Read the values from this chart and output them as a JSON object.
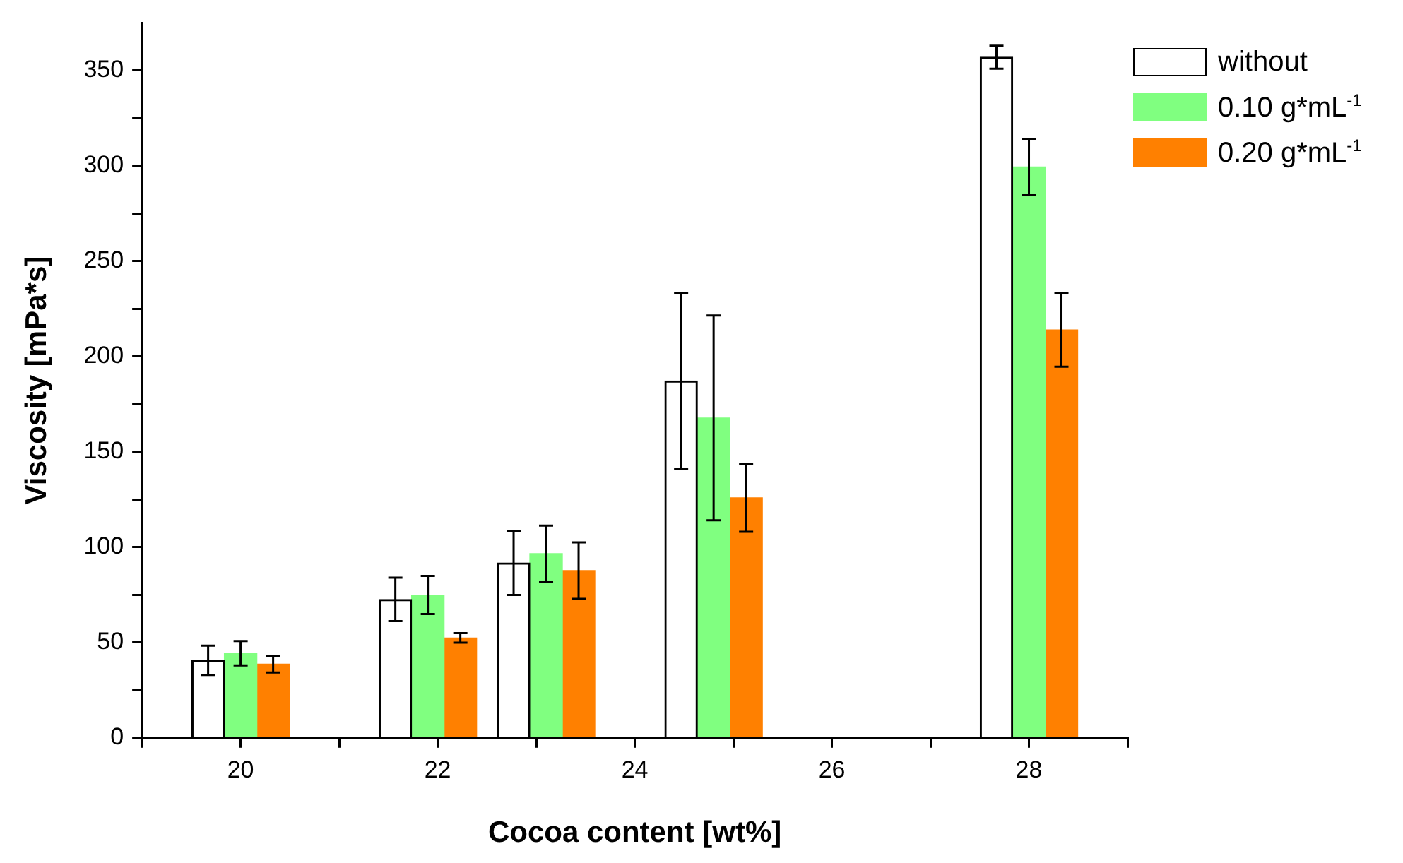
{
  "chart_data": {
    "type": "bar",
    "xlabel": "Cocoa content [wt%]",
    "ylabel": "Viscosity [mPa*s]",
    "x": [
      20,
      21.9,
      23.1,
      24.8,
      28
    ],
    "series": [
      {
        "name": "without",
        "color": "#ffffff",
        "values": [
          40.7,
          72.6,
          91.7,
          187.2,
          357
        ],
        "errors": [
          7.7,
          11.4,
          16.8,
          46.3,
          6
        ]
      },
      {
        "name": "0.10 g*mL$^{-1}$",
        "color": "#80ff80",
        "values": [
          44.4,
          74.9,
          96.6,
          167.8,
          299.4
        ],
        "errors": [
          6.4,
          10,
          14.7,
          53.7,
          14.8
        ]
      },
      {
        "name": "0.20 g*mL$^{-1}$",
        "color": "#ff8000",
        "values": [
          38.7,
          52.4,
          87.7,
          125.9,
          214
        ],
        "errors": [
          4.4,
          2.5,
          14.8,
          17.8,
          19.3
        ]
      }
    ],
    "xlim": [
      19,
      29
    ],
    "xticks": [
      {
        "value": 19,
        "label": null
      },
      20,
      {
        "value": 21,
        "label": null
      },
      22,
      {
        "value": 23,
        "label": null
      },
      24,
      {
        "value": 25,
        "label": null
      },
      26,
      {
        "value": 27,
        "label": null
      },
      28,
      {
        "value": 29,
        "label": null
      }
    ],
    "ylim": [
      0,
      375
    ],
    "yticks": [
      0,
      {
        "value": 25,
        "label": null
      },
      50,
      {
        "value": 75,
        "label": null
      },
      100,
      {
        "value": 125,
        "label": null
      },
      150,
      {
        "value": 175,
        "label": null
      },
      200,
      {
        "value": 225,
        "label": null
      },
      250,
      {
        "value": 275,
        "label": null
      },
      300,
      {
        "value": 325,
        "label": null
      },
      350
    ],
    "grid": false,
    "legend": "top right"
  }
}
